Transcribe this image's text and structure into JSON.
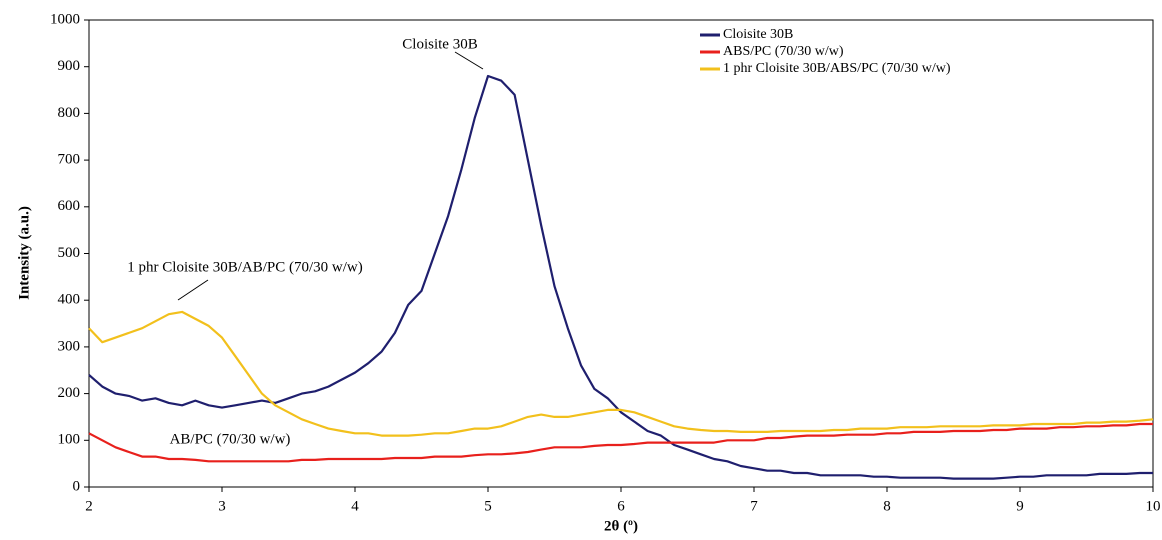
{
  "chart_data": {
    "type": "line",
    "xlabel": "2θ (º)",
    "ylabel": "Intensity (a.u.)",
    "x": [
      2.0,
      2.1,
      2.2,
      2.3,
      2.4,
      2.5,
      2.6,
      2.7,
      2.8,
      2.9,
      3.0,
      3.1,
      3.2,
      3.3,
      3.4,
      3.5,
      3.6,
      3.7,
      3.8,
      3.9,
      4.0,
      4.1,
      4.2,
      4.3,
      4.4,
      4.5,
      4.6,
      4.7,
      4.8,
      4.9,
      5.0,
      5.1,
      5.2,
      5.3,
      5.4,
      5.5,
      5.6,
      5.7,
      5.8,
      5.9,
      6.0,
      6.1,
      6.2,
      6.3,
      6.4,
      6.5,
      6.6,
      6.7,
      6.8,
      6.9,
      7.0,
      7.1,
      7.2,
      7.3,
      7.4,
      7.5,
      7.6,
      7.7,
      7.8,
      7.9,
      8.0,
      8.1,
      8.2,
      8.3,
      8.4,
      8.5,
      8.6,
      8.7,
      8.8,
      8.9,
      9.0,
      9.1,
      9.2,
      9.3,
      9.4,
      9.5,
      9.6,
      9.7,
      9.8,
      9.9,
      10.0
    ],
    "series": [
      {
        "name": "Cloisite 30B",
        "color": "#1f1f6e",
        "values": [
          240,
          215,
          200,
          195,
          185,
          190,
          180,
          175,
          185,
          175,
          170,
          175,
          180,
          185,
          180,
          190,
          200,
          205,
          215,
          230,
          245,
          265,
          290,
          330,
          390,
          420,
          500,
          580,
          680,
          790,
          880,
          870,
          840,
          700,
          560,
          430,
          340,
          260,
          210,
          190,
          160,
          140,
          120,
          110,
          90,
          80,
          70,
          60,
          55,
          45,
          40,
          35,
          35,
          30,
          30,
          25,
          25,
          25,
          25,
          22,
          22,
          20,
          20,
          20,
          20,
          18,
          18,
          18,
          18,
          20,
          22,
          22,
          25,
          25,
          25,
          25,
          28,
          28,
          28,
          30,
          30
        ]
      },
      {
        "name": "ABS/PC (70/30 w/w)",
        "color": "#e8201c",
        "values": [
          115,
          100,
          85,
          75,
          65,
          65,
          60,
          60,
          58,
          55,
          55,
          55,
          55,
          55,
          55,
          55,
          58,
          58,
          60,
          60,
          60,
          60,
          60,
          62,
          62,
          62,
          65,
          65,
          65,
          68,
          70,
          70,
          72,
          75,
          80,
          85,
          85,
          85,
          88,
          90,
          90,
          92,
          95,
          95,
          95,
          95,
          95,
          95,
          100,
          100,
          100,
          105,
          105,
          108,
          110,
          110,
          110,
          112,
          112,
          112,
          115,
          115,
          118,
          118,
          118,
          120,
          120,
          120,
          122,
          122,
          125,
          125,
          125,
          128,
          128,
          130,
          130,
          132,
          132,
          135,
          135
        ]
      },
      {
        "name": "1 phr Cloisite 30B/ABS/PC (70/30 w/w)",
        "color": "#f2c01c",
        "values": [
          340,
          310,
          320,
          330,
          340,
          355,
          370,
          375,
          360,
          345,
          320,
          280,
          240,
          200,
          175,
          160,
          145,
          135,
          125,
          120,
          115,
          115,
          110,
          110,
          110,
          112,
          115,
          115,
          120,
          125,
          125,
          130,
          140,
          150,
          155,
          150,
          150,
          155,
          160,
          165,
          165,
          160,
          150,
          140,
          130,
          125,
          122,
          120,
          120,
          118,
          118,
          118,
          120,
          120,
          120,
          120,
          122,
          122,
          125,
          125,
          125,
          128,
          128,
          128,
          130,
          130,
          130,
          130,
          132,
          132,
          132,
          135,
          135,
          135,
          135,
          138,
          138,
          140,
          140,
          142,
          145
        ]
      }
    ],
    "annotations": [
      "Cloisite 30B",
      "1 phr Cloisite 30B/AB/PC (70/30 w/w)",
      "AB/PC (70/30 w/w)"
    ],
    "xlim": [
      2,
      10
    ],
    "xticks": [
      2,
      3,
      4,
      5,
      6,
      7,
      8,
      9,
      10
    ],
    "ylim": [
      0,
      1000
    ],
    "yticks": [
      0,
      100,
      200,
      300,
      400,
      500,
      600,
      700,
      800,
      900,
      1000
    ],
    "grid": false
  }
}
